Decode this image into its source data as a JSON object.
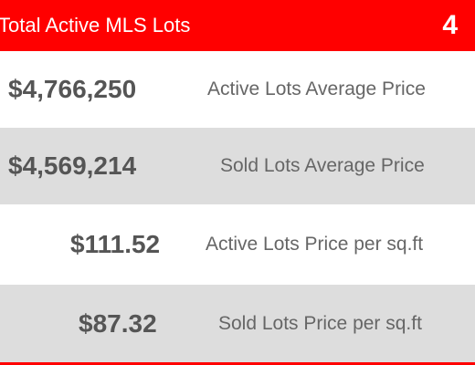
{
  "header": {
    "title": "Total Active MLS Lots",
    "count": "4",
    "background_color": "#ff0000",
    "text_color": "#ffffff"
  },
  "stats": [
    {
      "value": "$4,766,250",
      "label": "Active Lots Average Price"
    },
    {
      "value": "$4,569,214",
      "label": "Sold Lots Average Price"
    },
    {
      "value": "$111.52",
      "label": "Active Lots Price per sq.ft"
    },
    {
      "value": "$87.32",
      "label": "Sold Lots Price per sq.ft"
    }
  ],
  "colors": {
    "accent": "#ff0000",
    "row_light": "#ffffff",
    "row_dark": "#dddddd",
    "text": "#555555"
  }
}
